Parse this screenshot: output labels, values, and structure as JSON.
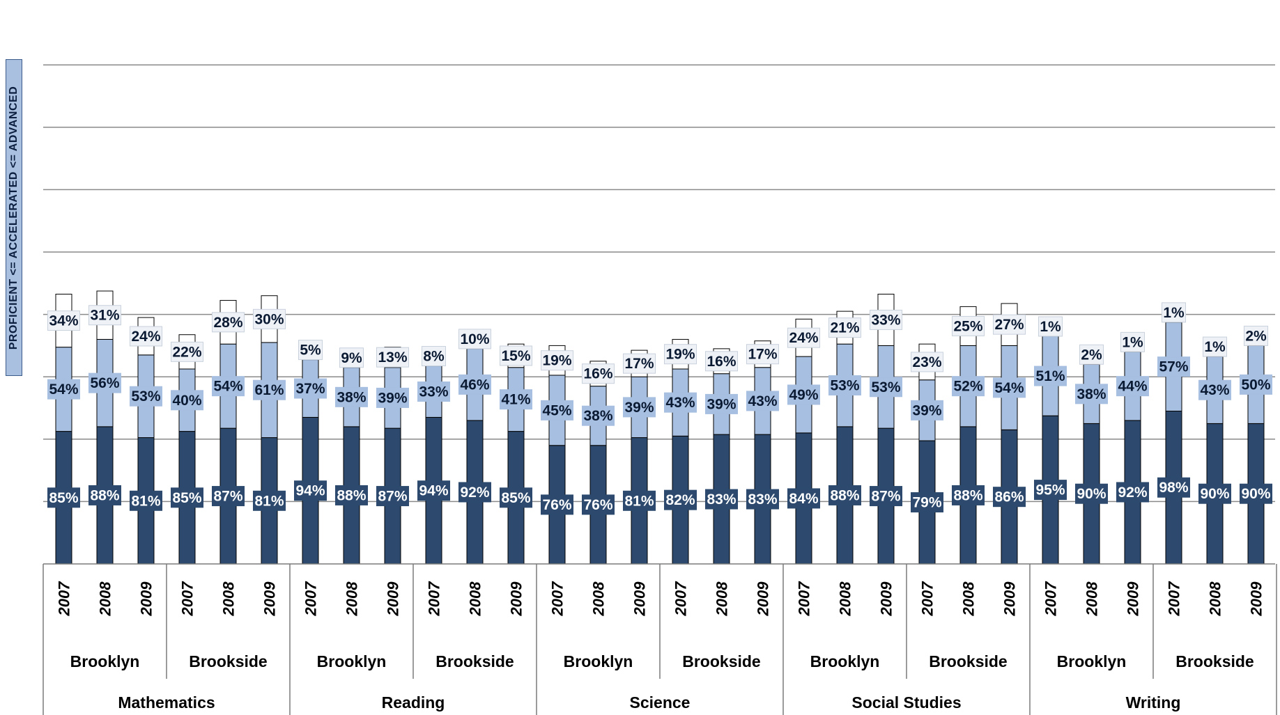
{
  "chart_data": {
    "type": "bar",
    "stacked": true,
    "ylabel": "PROFICIENT <= ACCELERATED <= ADVANCED",
    "grid": true,
    "colors": {
      "proficient": "#2d4a6e",
      "accelerated": "#a7bfe0",
      "advanced": "#ffffff"
    },
    "subjects": [
      {
        "name": "Mathematics",
        "schools": [
          {
            "name": "Brooklyn",
            "bars": [
              {
                "year": "2007",
                "proficient": "85%",
                "accelerated": "54%",
                "advanced": "34%"
              },
              {
                "year": "2008",
                "proficient": "88%",
                "accelerated": "56%",
                "advanced": "31%"
              },
              {
                "year": "2009",
                "proficient": "81%",
                "accelerated": "53%",
                "advanced": "24%"
              }
            ]
          },
          {
            "name": "Brookside",
            "bars": [
              {
                "year": "2007",
                "proficient": "85%",
                "accelerated": "40%",
                "advanced": "22%"
              },
              {
                "year": "2008",
                "proficient": "87%",
                "accelerated": "54%",
                "advanced": "28%"
              },
              {
                "year": "2009",
                "proficient": "81%",
                "accelerated": "61%",
                "advanced": "30%"
              }
            ]
          }
        ]
      },
      {
        "name": "Reading",
        "schools": [
          {
            "name": "Brooklyn",
            "bars": [
              {
                "year": "2007",
                "proficient": "94%",
                "accelerated": "37%",
                "advanced": "5%"
              },
              {
                "year": "2008",
                "proficient": "88%",
                "accelerated": "38%",
                "advanced": "9%"
              },
              {
                "year": "2009",
                "proficient": "87%",
                "accelerated": "39%",
                "advanced": "13%"
              }
            ]
          },
          {
            "name": "Brookside",
            "bars": [
              {
                "year": "2007",
                "proficient": "94%",
                "accelerated": "33%",
                "advanced": "8%"
              },
              {
                "year": "2008",
                "proficient": "92%",
                "accelerated": "46%",
                "advanced": "10%"
              },
              {
                "year": "2009",
                "proficient": "85%",
                "accelerated": "41%",
                "advanced": "15%"
              }
            ]
          }
        ]
      },
      {
        "name": "Science",
        "schools": [
          {
            "name": "Brooklyn",
            "bars": [
              {
                "year": "2007",
                "proficient": "76%",
                "accelerated": "45%",
                "advanced": "19%"
              },
              {
                "year": "2008",
                "proficient": "76%",
                "accelerated": "38%",
                "advanced": "16%"
              },
              {
                "year": "2009",
                "proficient": "81%",
                "accelerated": "39%",
                "advanced": "17%"
              }
            ]
          },
          {
            "name": "Brookside",
            "bars": [
              {
                "year": "2007",
                "proficient": "82%",
                "accelerated": "43%",
                "advanced": "19%"
              },
              {
                "year": "2008",
                "proficient": "83%",
                "accelerated": "39%",
                "advanced": "16%"
              },
              {
                "year": "2009",
                "proficient": "83%",
                "accelerated": "43%",
                "advanced": "17%"
              }
            ]
          }
        ]
      },
      {
        "name": "Social Studies",
        "schools": [
          {
            "name": "Brooklyn",
            "bars": [
              {
                "year": "2007",
                "proficient": "84%",
                "accelerated": "49%",
                "advanced": "24%"
              },
              {
                "year": "2008",
                "proficient": "88%",
                "accelerated": "53%",
                "advanced": "21%"
              },
              {
                "year": "2009",
                "proficient": "87%",
                "accelerated": "53%",
                "advanced": "33%"
              }
            ]
          },
          {
            "name": "Brookside",
            "bars": [
              {
                "year": "2007",
                "proficient": "79%",
                "accelerated": "39%",
                "advanced": "23%"
              },
              {
                "year": "2008",
                "proficient": "88%",
                "accelerated": "52%",
                "advanced": "25%"
              },
              {
                "year": "2009",
                "proficient": "86%",
                "accelerated": "54%",
                "advanced": "27%"
              }
            ]
          }
        ]
      },
      {
        "name": "Writing",
        "schools": [
          {
            "name": "Brooklyn",
            "bars": [
              {
                "year": "2007",
                "proficient": "95%",
                "accelerated": "51%",
                "advanced": "1%"
              },
              {
                "year": "2008",
                "proficient": "90%",
                "accelerated": "38%",
                "advanced": "2%"
              },
              {
                "year": "2009",
                "proficient": "92%",
                "accelerated": "44%",
                "advanced": "1%"
              }
            ]
          },
          {
            "name": "Brookside",
            "bars": [
              {
                "year": "2007",
                "proficient": "98%",
                "accelerated": "57%",
                "advanced": "1%"
              },
              {
                "year": "2008",
                "proficient": "90%",
                "accelerated": "43%",
                "advanced": "1%"
              },
              {
                "year": "2009",
                "proficient": "90%",
                "accelerated": "50%",
                "advanced": "2%"
              }
            ]
          }
        ]
      }
    ]
  }
}
